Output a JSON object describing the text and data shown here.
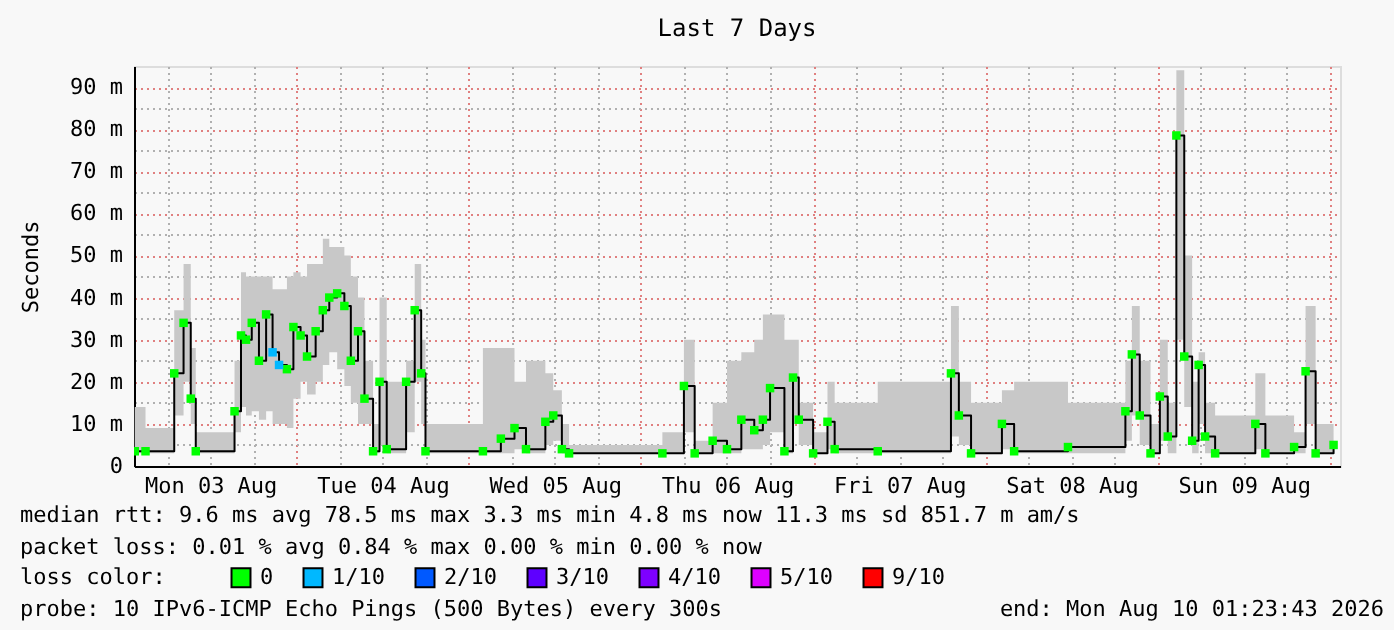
{
  "chart_data": {
    "type": "step",
    "title": "Last 7 Days",
    "ylabel": "Seconds",
    "legend_title": "loss color:",
    "grid": true,
    "legend": "bottom",
    "xlim": [
      "2026-08-03T01:23:43",
      "2026-08-10T01:23:43"
    ],
    "xticks": [
      {
        "value": "2026-08-03T06:00",
        "label": null
      },
      {
        "value": "2026-08-03T12:00",
        "label": "Mon 03 Aug"
      },
      {
        "value": "2026-08-03T18:00",
        "label": null
      },
      {
        "value": "2026-08-04T00:00",
        "label": null
      },
      {
        "value": "2026-08-04T06:00",
        "label": null
      },
      {
        "value": "2026-08-04T12:00",
        "label": "Tue 04 Aug"
      },
      {
        "value": "2026-08-04T18:00",
        "label": null
      },
      {
        "value": "2026-08-05T00:00",
        "label": null
      },
      {
        "value": "2026-08-05T06:00",
        "label": null
      },
      {
        "value": "2026-08-05T12:00",
        "label": "Wed 05 Aug"
      },
      {
        "value": "2026-08-05T18:00",
        "label": null
      },
      {
        "value": "2026-08-06T00:00",
        "label": null
      },
      {
        "value": "2026-08-06T06:00",
        "label": null
      },
      {
        "value": "2026-08-06T12:00",
        "label": "Thu 06 Aug"
      },
      {
        "value": "2026-08-06T18:00",
        "label": null
      },
      {
        "value": "2026-08-07T00:00",
        "label": null
      },
      {
        "value": "2026-08-07T06:00",
        "label": null
      },
      {
        "value": "2026-08-07T12:00",
        "label": "Fri 07 Aug"
      },
      {
        "value": "2026-08-07T18:00",
        "label": null
      },
      {
        "value": "2026-08-08T00:00",
        "label": null
      },
      {
        "value": "2026-08-08T06:00",
        "label": null
      },
      {
        "value": "2026-08-08T12:00",
        "label": "Sat 08 Aug"
      },
      {
        "value": "2026-08-08T18:00",
        "label": null
      },
      {
        "value": "2026-08-09T00:00",
        "label": null
      },
      {
        "value": "2026-08-09T06:00",
        "label": null
      },
      {
        "value": "2026-08-09T12:00",
        "label": "Sun 09 Aug"
      },
      {
        "value": "2026-08-09T18:00",
        "label": null
      },
      {
        "value": "2026-08-10T00:00",
        "label": null
      }
    ],
    "ylim": [
      0,
      95
    ],
    "yticks": [
      0,
      {
        "value": 5,
        "label": null
      },
      {
        "value": 10,
        "label": "10 m"
      },
      {
        "value": 15,
        "label": null
      },
      {
        "value": 20,
        "label": "20 m"
      },
      {
        "value": 25,
        "label": null
      },
      {
        "value": 30,
        "label": "30 m"
      },
      {
        "value": 35,
        "label": null
      },
      {
        "value": 40,
        "label": "40 m"
      },
      {
        "value": 45,
        "label": null
      },
      {
        "value": 50,
        "label": "50 m"
      },
      {
        "value": 55,
        "label": null
      },
      {
        "value": 60,
        "label": "60 m"
      },
      {
        "value": 65,
        "label": null
      },
      {
        "value": 70,
        "label": "70 m"
      },
      {
        "value": 75,
        "label": null
      },
      {
        "value": 80,
        "label": "80 m"
      },
      {
        "value": 85,
        "label": null
      },
      {
        "value": 90,
        "label": "90 m"
      }
    ],
    "x": [
      "2026-08-03T01:30",
      "2026-08-03T03:00",
      "2026-08-03T07:00",
      "2026-08-03T08:18",
      "2026-08-03T09:18",
      "2026-08-03T10:00",
      "2026-08-03T15:24",
      "2026-08-03T16:18",
      "2026-08-03T17:00",
      "2026-08-03T17:48",
      "2026-08-03T18:48",
      "2026-08-03T19:48",
      "2026-08-03T20:42",
      "2026-08-03T21:36",
      "2026-08-03T22:42",
      "2026-08-03T23:36",
      "2026-08-04T00:36",
      "2026-08-04T01:30",
      "2026-08-04T02:42",
      "2026-08-04T03:42",
      "2026-08-04T04:36",
      "2026-08-04T05:42",
      "2026-08-04T06:42",
      "2026-08-04T07:36",
      "2026-08-04T08:36",
      "2026-08-04T09:30",
      "2026-08-04T10:42",
      "2026-08-04T11:36",
      "2026-08-04T12:36",
      "2026-08-04T15:18",
      "2026-08-04T16:30",
      "2026-08-04T17:24",
      "2026-08-04T18:00",
      "2026-08-05T02:00",
      "2026-08-05T04:30",
      "2026-08-05T06:24",
      "2026-08-05T08:00",
      "2026-08-05T10:42",
      "2026-08-05T11:48",
      "2026-08-05T13:00",
      "2026-08-05T14:00",
      "2026-08-06T03:00",
      "2026-08-06T06:00",
      "2026-08-06T07:30",
      "2026-08-06T10:00",
      "2026-08-06T12:00",
      "2026-08-06T14:00",
      "2026-08-06T15:48",
      "2026-08-06T17:00",
      "2026-08-06T18:00",
      "2026-08-06T20:00",
      "2026-08-06T21:12",
      "2026-08-06T22:00",
      "2026-08-07T00:00",
      "2026-08-07T02:00",
      "2026-08-07T03:00",
      "2026-08-07T09:00",
      "2026-08-07T19:12",
      "2026-08-07T20:18",
      "2026-08-07T22:00",
      "2026-08-08T02:18",
      "2026-08-08T04:00",
      "2026-08-08T11:30",
      "2026-08-08T19:30",
      "2026-08-08T20:24",
      "2026-08-08T21:30",
      "2026-08-08T23:00",
      "2026-08-09T00:18",
      "2026-08-09T01:24",
      "2026-08-09T02:36",
      "2026-08-09T03:42",
      "2026-08-09T04:48",
      "2026-08-09T05:42",
      "2026-08-09T06:36",
      "2026-08-09T08:00",
      "2026-08-09T13:36",
      "2026-08-09T15:00",
      "2026-08-09T19:00",
      "2026-08-09T20:36",
      "2026-08-09T22:00",
      "2026-08-10T00:30"
    ],
    "series": [
      {
        "color": "#000000",
        "marker": "none",
        "values": [
          3.5,
          3.5,
          22,
          34,
          16,
          3.5,
          13,
          31,
          30,
          34,
          25,
          36,
          27,
          24,
          23,
          33,
          31,
          26,
          32,
          37,
          40,
          41,
          38,
          25,
          32,
          16,
          3.5,
          20,
          4,
          20,
          37,
          22,
          3.5,
          3.5,
          6.5,
          9,
          4,
          10.5,
          12,
          4,
          3,
          3,
          19,
          3,
          6,
          4,
          11,
          8.5,
          11,
          18.5,
          3.5,
          21,
          11,
          3,
          10.5,
          4,
          3.5,
          22,
          12,
          3,
          10,
          3.5,
          4.5,
          13,
          26.5,
          12,
          3,
          16.5,
          7,
          78.5,
          26,
          6,
          24,
          7,
          3,
          10,
          3,
          4.5,
          22.5,
          3,
          5
        ],
        "lower": [
          3,
          3,
          12,
          20,
          10,
          3,
          8,
          14,
          12,
          13,
          11,
          13,
          10,
          10,
          9,
          16,
          20,
          17,
          20,
          24,
          27,
          23,
          19,
          15,
          10,
          10,
          3,
          5,
          3,
          8,
          20,
          10,
          3,
          3,
          3,
          4,
          3,
          5,
          6,
          3,
          3,
          3,
          8,
          3,
          3,
          3,
          4,
          4,
          5,
          8,
          3,
          10,
          5,
          3,
          4,
          3,
          3,
          7,
          5,
          3,
          4,
          3,
          3,
          6,
          12,
          5,
          3,
          6,
          3,
          30,
          14,
          3,
          10,
          3,
          3,
          4,
          3,
          3,
          10,
          3,
          3
        ],
        "upper": [
          14,
          9,
          37,
          48,
          28,
          8,
          25,
          46,
          45,
          45,
          45,
          45,
          42,
          42,
          45,
          46,
          45,
          48,
          48,
          54,
          52,
          52,
          50,
          45,
          40,
          25,
          10,
          40,
          20,
          25,
          48,
          30,
          10,
          28,
          28,
          20,
          25,
          22,
          18,
          10,
          5,
          8,
          30,
          6,
          15,
          25,
          27,
          30,
          36,
          36,
          30,
          30,
          15,
          8,
          20,
          15,
          20,
          38,
          20,
          15,
          18,
          20,
          15,
          25,
          38,
          25,
          10,
          30,
          15,
          94,
          50,
          20,
          27,
          15,
          12,
          22,
          12,
          8,
          38,
          10,
          10
        ]
      },
      {
        "type": "scatter",
        "marker": "square",
        "name": "0",
        "color": "#00ff00",
        "values": [
          3.5,
          3.5,
          22,
          34,
          16,
          3.5,
          13,
          31,
          30,
          34,
          25,
          36,
          null,
          null,
          23,
          33,
          31,
          26,
          32,
          37,
          40,
          41,
          38,
          25,
          32,
          16,
          3.5,
          20,
          4,
          20,
          37,
          22,
          3.5,
          3.5,
          6.5,
          9,
          4,
          10.5,
          12,
          4,
          3,
          3,
          19,
          3,
          6,
          4,
          11,
          8.5,
          11,
          18.5,
          3.5,
          21,
          11,
          3,
          10.5,
          4,
          3.5,
          22,
          12,
          3,
          10,
          3.5,
          4.5,
          13,
          26.5,
          12,
          3,
          16.5,
          7,
          78.5,
          26,
          6,
          24,
          7,
          3,
          10,
          3,
          4.5,
          22.5,
          3,
          5
        ]
      },
      {
        "type": "scatter",
        "marker": "square",
        "name": "1/10",
        "color": "#00b8ff",
        "x": [
          "2026-08-03T20:42",
          "2026-08-03T21:36"
        ],
        "values": [
          27,
          24
        ]
      },
      {
        "type": "scatter",
        "name": "2/10",
        "color": "#0059ff",
        "values": [
          null,
          null,
          null,
          null,
          null,
          null,
          null,
          null,
          null,
          null,
          null,
          null,
          null,
          null,
          null,
          null,
          null,
          null,
          null,
          null,
          null,
          null,
          null,
          null,
          null,
          null,
          null,
          null,
          null,
          null,
          null,
          null,
          null,
          null,
          null,
          null,
          null,
          null,
          null,
          null,
          null,
          null,
          null,
          null,
          null,
          null,
          null,
          null,
          null,
          null,
          null,
          null,
          null,
          null,
          null,
          null,
          null,
          null,
          null,
          null,
          null,
          null,
          null,
          null,
          null,
          null,
          null,
          null,
          null,
          null,
          null,
          null,
          null,
          null,
          null,
          null,
          null,
          null,
          null,
          null,
          null
        ]
      },
      {
        "type": "scatter",
        "name": "3/10",
        "color": "#5e00ff",
        "values": [
          null,
          null,
          null,
          null,
          null,
          null,
          null,
          null,
          null,
          null,
          null,
          null,
          null,
          null,
          null,
          null,
          null,
          null,
          null,
          null,
          null,
          null,
          null,
          null,
          null,
          null,
          null,
          null,
          null,
          null,
          null,
          null,
          null,
          null,
          null,
          null,
          null,
          null,
          null,
          null,
          null,
          null,
          null,
          null,
          null,
          null,
          null,
          null,
          null,
          null,
          null,
          null,
          null,
          null,
          null,
          null,
          null,
          null,
          null,
          null,
          null,
          null,
          null,
          null,
          null,
          null,
          null,
          null,
          null,
          null,
          null,
          null,
          null,
          null,
          null,
          null,
          null,
          null,
          null,
          null,
          null
        ]
      },
      {
        "type": "scatter",
        "name": "4/10",
        "color": "#7e00ff",
        "values": [
          null,
          null,
          null,
          null,
          null,
          null,
          null,
          null,
          null,
          null,
          null,
          null,
          null,
          null,
          null,
          null,
          null,
          null,
          null,
          null,
          null,
          null,
          null,
          null,
          null,
          null,
          null,
          null,
          null,
          null,
          null,
          null,
          null,
          null,
          null,
          null,
          null,
          null,
          null,
          null,
          null,
          null,
          null,
          null,
          null,
          null,
          null,
          null,
          null,
          null,
          null,
          null,
          null,
          null,
          null,
          null,
          null,
          null,
          null,
          null,
          null,
          null,
          null,
          null,
          null,
          null,
          null,
          null,
          null,
          null,
          null,
          null,
          null,
          null,
          null,
          null,
          null,
          null,
          null,
          null,
          null
        ]
      },
      {
        "type": "scatter",
        "name": "5/10",
        "color": "#dd00ff",
        "values": [
          null,
          null,
          null,
          null,
          null,
          null,
          null,
          null,
          null,
          null,
          null,
          null,
          null,
          null,
          null,
          null,
          null,
          null,
          null,
          null,
          null,
          null,
          null,
          null,
          null,
          null,
          null,
          null,
          null,
          null,
          null,
          null,
          null,
          null,
          null,
          null,
          null,
          null,
          null,
          null,
          null,
          null,
          null,
          null,
          null,
          null,
          null,
          null,
          null,
          null,
          null,
          null,
          null,
          null,
          null,
          null,
          null,
          null,
          null,
          null,
          null,
          null,
          null,
          null,
          null,
          null,
          null,
          null,
          null,
          null,
          null,
          null,
          null,
          null,
          null,
          null,
          null,
          null,
          null,
          null,
          null
        ]
      },
      {
        "type": "scatter",
        "name": "9/10",
        "color": "#ff0000",
        "values": [
          null,
          null,
          null,
          null,
          null,
          null,
          null,
          null,
          null,
          null,
          null,
          null,
          null,
          null,
          null,
          null,
          null,
          null,
          null,
          null,
          null,
          null,
          null,
          null,
          null,
          null,
          null,
          null,
          null,
          null,
          null,
          null,
          null,
          null,
          null,
          null,
          null,
          null,
          null,
          null,
          null,
          null,
          null,
          null,
          null,
          null,
          null,
          null,
          null,
          null,
          null,
          null,
          null,
          null,
          null,
          null,
          null,
          null,
          null,
          null,
          null,
          null,
          null,
          null,
          null,
          null,
          null,
          null,
          null,
          null,
          null,
          null,
          null,
          null,
          null,
          null,
          null,
          null,
          null,
          null,
          null
        ]
      }
    ],
    "annotations": [
      "median rtt:  9.6 ms avg  78.5 ms max  3.3 ms min  4.8 ms now  11.3 ms sd  851.7 m am/s",
      "packet loss: 0.01 % avg  0.84 % max  0.00 % min  0.00 % now",
      "probe:       10 IPv6-ICMP Echo Pings (500 Bytes) every 300s",
      "end: Mon Aug 10 01:23:43 2026"
    ]
  }
}
